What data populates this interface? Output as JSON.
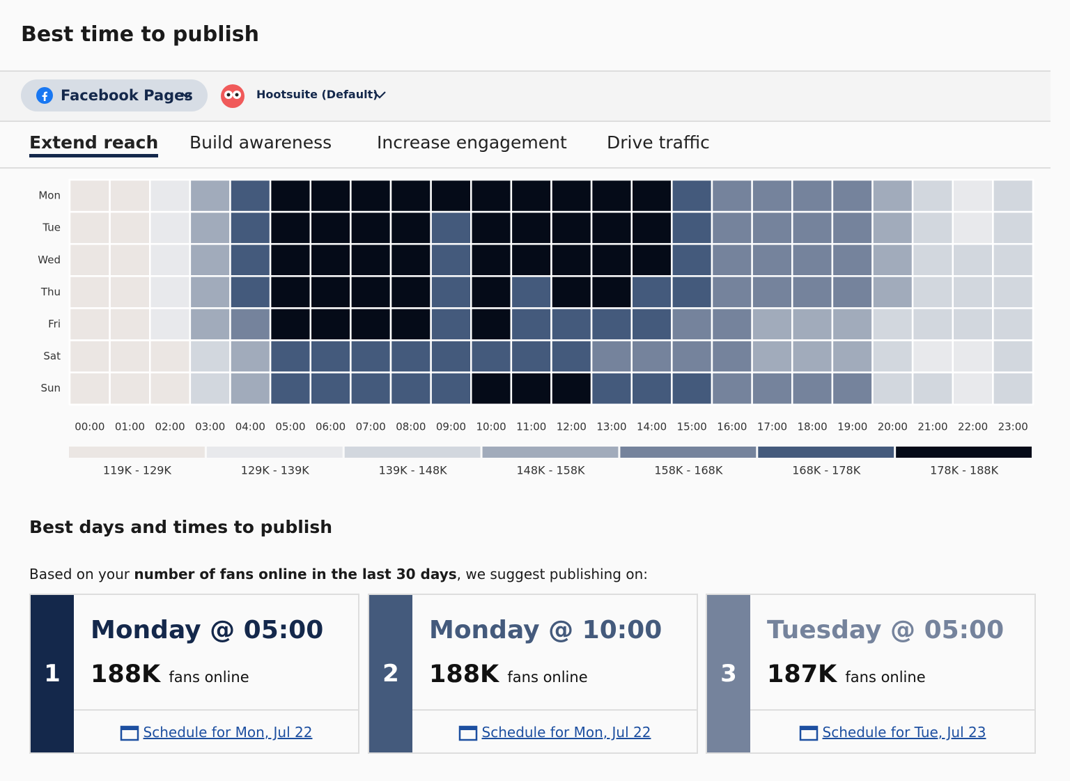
{
  "header": {
    "title": "Best time to publish"
  },
  "toolbar": {
    "network": "Facebook Pages",
    "account": "Hootsuite (Default)"
  },
  "tabs": {
    "items": [
      "Extend reach",
      "Build awareness",
      "Increase engagement",
      "Drive traffic"
    ],
    "active": 0
  },
  "heatmap": {
    "type": "heatmap",
    "rows": [
      "Mon",
      "Tue",
      "Wed",
      "Thu",
      "Fri",
      "Sat",
      "Sun"
    ],
    "columns": [
      "00:00",
      "01:00",
      "02:00",
      "03:00",
      "04:00",
      "05:00",
      "06:00",
      "07:00",
      "08:00",
      "09:00",
      "10:00",
      "11:00",
      "12:00",
      "13:00",
      "14:00",
      "15:00",
      "16:00",
      "17:00",
      "18:00",
      "19:00",
      "20:00",
      "21:00",
      "22:00",
      "23:00"
    ],
    "legend": [
      {
        "label": "119K - 129K",
        "min": 119,
        "max": 129,
        "color": "#ebe6e3"
      },
      {
        "label": "129K - 139K",
        "min": 129,
        "max": 139,
        "color": "#e8e9ec"
      },
      {
        "label": "139K - 148K",
        "min": 139,
        "max": 148,
        "color": "#d2d7de"
      },
      {
        "label": "148K - 158K",
        "min": 148,
        "max": 158,
        "color": "#a1abbb"
      },
      {
        "label": "158K - 168K",
        "min": 158,
        "max": 168,
        "color": "#75839c"
      },
      {
        "label": "168K - 178K",
        "min": 168,
        "max": 178,
        "color": "#445a7c"
      },
      {
        "label": "178K - 188K",
        "min": 178,
        "max": 188,
        "color": "#050b18"
      }
    ],
    "values": [
      [
        124,
        124,
        134,
        153,
        173,
        183,
        183,
        183,
        183,
        183,
        183,
        183,
        183,
        183,
        183,
        173,
        163,
        163,
        163,
        163,
        153,
        143.5,
        134,
        143.5
      ],
      [
        124,
        124,
        134,
        153,
        173,
        183,
        183,
        183,
        183,
        173,
        183,
        183,
        183,
        183,
        183,
        173,
        163,
        163,
        163,
        163,
        153,
        143.5,
        134,
        143.5
      ],
      [
        124,
        124,
        134,
        153,
        173,
        183,
        183,
        183,
        183,
        173,
        183,
        183,
        183,
        183,
        183,
        173,
        163,
        163,
        163,
        163,
        153,
        143.5,
        143.5,
        143.5
      ],
      [
        124,
        124,
        134,
        153,
        173,
        183,
        183,
        183,
        183,
        173,
        183,
        173,
        183,
        183,
        173,
        173,
        163,
        163,
        163,
        163,
        153,
        143.5,
        143.5,
        143.5
      ],
      [
        124,
        124,
        134,
        153,
        163,
        183,
        183,
        183,
        183,
        173,
        183,
        173,
        173,
        173,
        173,
        163,
        163,
        153,
        153,
        153,
        143.5,
        143.5,
        143.5,
        143.5
      ],
      [
        124,
        124,
        124,
        143.5,
        153,
        173,
        173,
        173,
        173,
        173,
        173,
        173,
        173,
        163,
        163,
        163,
        163,
        153,
        153,
        153,
        143.5,
        134,
        134,
        143.5
      ],
      [
        124,
        124,
        124,
        143.5,
        153,
        173,
        173,
        173,
        173,
        173,
        183,
        183,
        183,
        173,
        173,
        173,
        163,
        163,
        163,
        163,
        143.5,
        143.5,
        134,
        143.5
      ]
    ]
  },
  "best": {
    "title": "Best days and times to publish",
    "intro": [
      "Based on your ",
      "number of fans online in the last 30 days",
      ", we suggest publishing on:"
    ],
    "cards": [
      {
        "rank": "1",
        "time": "Monday @ 05:00",
        "count": "188K",
        "unit": "fans online",
        "link": "Schedule for Mon, Jul 22",
        "color": "#14284b"
      },
      {
        "rank": "2",
        "time": "Monday @ 10:00",
        "count": "188K",
        "unit": "fans online",
        "link": "Schedule for Mon, Jul 22",
        "color": "#445a7c"
      },
      {
        "rank": "3",
        "time": "Tuesday @ 05:00",
        "count": "187K",
        "unit": "fans online",
        "link": "Schedule for Tue, Jul 23",
        "color": "#75839c"
      }
    ]
  }
}
